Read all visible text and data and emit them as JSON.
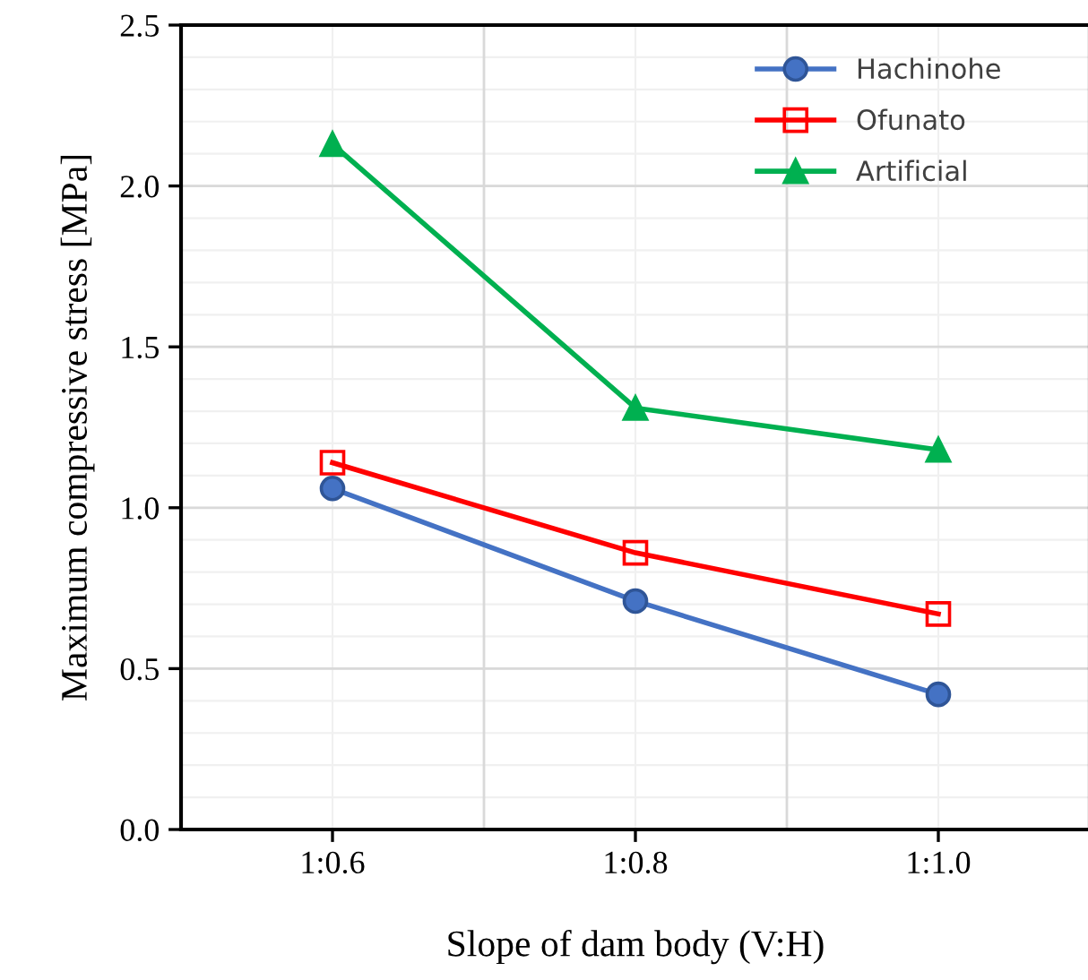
{
  "chart_data": {
    "type": "line",
    "xlabel": "Slope of dam body (V:H)",
    "ylabel": "Maximum compressive stress [MPa]",
    "categories": [
      "1:0.6",
      "1:0.8",
      "1:1.0"
    ],
    "series": [
      {
        "name": "Hachinohe",
        "color": "#4472c4",
        "values": [
          1.06,
          0.71,
          0.42
        ],
        "marker": "circle"
      },
      {
        "name": "Ofunato",
        "color": "#ff0000",
        "values": [
          1.14,
          0.86,
          0.67
        ],
        "marker": "square"
      },
      {
        "name": "Artificial",
        "color": "#00b050",
        "values": [
          2.13,
          1.31,
          1.18
        ],
        "marker": "triangle"
      }
    ],
    "ylim": [
      0,
      2.5
    ],
    "yticks": [
      {
        "value": 0,
        "label": "0.0"
      },
      {
        "value": 0.5,
        "label": "0.5"
      },
      {
        "value": 1,
        "label": "1.0"
      },
      {
        "value": 1.5,
        "label": "1.5"
      },
      {
        "value": 2,
        "label": "2.0"
      },
      {
        "value": 2.5,
        "label": "2.5"
      }
    ],
    "grid": true,
    "legend": "top right",
    "line_style": "solid"
  }
}
